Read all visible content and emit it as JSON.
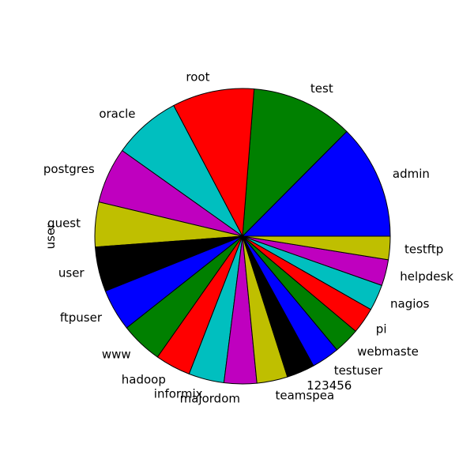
{
  "chart_data": {
    "type": "pie",
    "title": "",
    "ylabel": "user",
    "start_angle_deg": 0,
    "direction": "counterclockwise",
    "labels": [
      "admin",
      "test",
      "root",
      "oracle",
      "postgres",
      "guest",
      "user",
      "ftpuser",
      "www",
      "hadoop",
      "informix",
      "majordom",
      "teamspea",
      "123456",
      "testuser",
      "webmaste",
      "pi",
      "nagios",
      "helpdesk",
      "testftp"
    ],
    "values": [
      12.3,
      11.0,
      8.8,
      7.3,
      6.0,
      4.8,
      4.8,
      4.5,
      4.5,
      3.8,
      3.8,
      3.5,
      3.3,
      3.0,
      3.0,
      2.8,
      2.8,
      2.8,
      2.8,
      2.5
    ],
    "colors": [
      "#0000ff",
      "#008000",
      "#ff0000",
      "#00bfbf",
      "#bf00bf",
      "#bfbf00",
      "#000000",
      "#0000ff",
      "#008000",
      "#ff0000",
      "#00bfbf",
      "#bf00bf",
      "#bfbf00",
      "#000000",
      "#0000ff",
      "#008000",
      "#ff0000",
      "#00bfbf",
      "#bf00bf",
      "#bfbf00"
    ]
  }
}
